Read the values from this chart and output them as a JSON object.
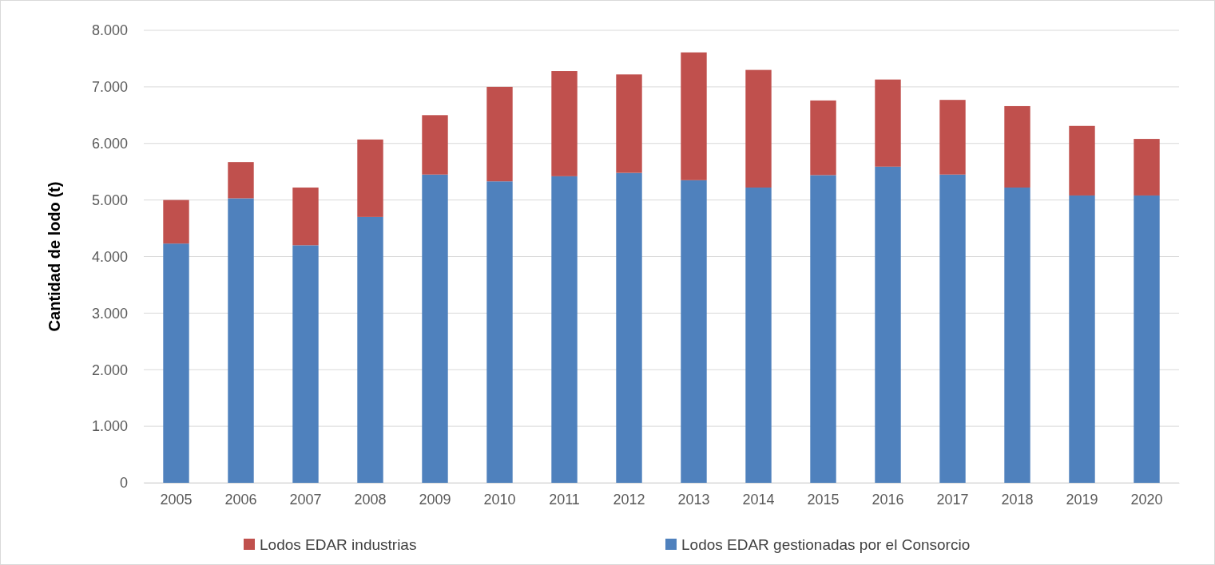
{
  "chart_data": {
    "type": "bar",
    "stacked": true,
    "ylabel": "Cantidad de lodo (t)",
    "categories": [
      "2005",
      "2006",
      "2007",
      "2008",
      "2009",
      "2010",
      "2011",
      "2012",
      "2013",
      "2014",
      "2015",
      "2016",
      "2017",
      "2018",
      "2019",
      "2020"
    ],
    "series": [
      {
        "name": "Lodos EDAR gestionadas por el Consorcio",
        "color": "#4f81bd",
        "values": [
          4230,
          5030,
          4200,
          4700,
          5450,
          5330,
          5420,
          5480,
          5350,
          5220,
          5440,
          5590,
          5450,
          5220,
          5080,
          5080
        ]
      },
      {
        "name": "Lodos EDAR industrias",
        "color": "#c0504d",
        "values": [
          770,
          640,
          1020,
          1370,
          1050,
          1670,
          1860,
          1740,
          2260,
          2080,
          1320,
          1540,
          1320,
          1440,
          1230,
          1000
        ]
      }
    ],
    "ylim": [
      0,
      8000
    ],
    "yticks": [
      {
        "value": 0,
        "label": "0"
      },
      {
        "value": 1000,
        "label": "1.000"
      },
      {
        "value": 2000,
        "label": "2.000"
      },
      {
        "value": 3000,
        "label": "3.000"
      },
      {
        "value": 4000,
        "label": "4.000"
      },
      {
        "value": 5000,
        "label": "5.000"
      },
      {
        "value": 6000,
        "label": "6.000"
      },
      {
        "value": 7000,
        "label": "7.000"
      },
      {
        "value": 8000,
        "label": "8.000"
      }
    ],
    "grid": "y",
    "legend": "bottom"
  }
}
